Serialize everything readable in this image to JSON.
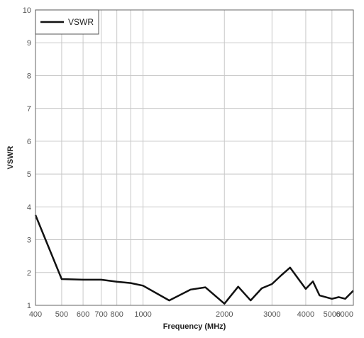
{
  "chart_data": {
    "type": "line",
    "title": "",
    "xlabel": "Frequency (MHz)",
    "ylabel": "VSWR",
    "x_scale": "log",
    "xlim": [
      400,
      6000
    ],
    "ylim": [
      1,
      10
    ],
    "x_ticks": [
      400,
      500,
      600,
      700,
      800,
      1000,
      2000,
      3000,
      4000,
      5000,
      6000
    ],
    "x_tick_labels": [
      "400",
      "500",
      "600",
      "700",
      "800",
      "1000",
      "2000",
      "3000",
      "4000",
      "5000",
      "6000"
    ],
    "x_grid": [
      400,
      500,
      600,
      700,
      800,
      900,
      1000,
      2000,
      3000,
      4000,
      5000,
      6000
    ],
    "y_ticks": [
      1,
      2,
      3,
      4,
      5,
      6,
      7,
      8,
      9,
      10
    ],
    "y_tick_labels": [
      "1",
      "2",
      "3",
      "4",
      "5",
      "6",
      "7",
      "8",
      "9",
      "10"
    ],
    "grid": true,
    "legend_position": "top-left",
    "line_color": "#111111",
    "series": [
      {
        "name": "VSWR",
        "x": [
          400,
          500,
          600,
          700,
          800,
          900,
          1000,
          1250,
          1500,
          1700,
          2000,
          2250,
          2500,
          2750,
          3000,
          3250,
          3500,
          4000,
          4250,
          4500,
          5000,
          5300,
          5600,
          6000
        ],
        "y": [
          3.75,
          1.8,
          1.78,
          1.78,
          1.72,
          1.68,
          1.6,
          1.15,
          1.48,
          1.55,
          1.05,
          1.57,
          1.15,
          1.52,
          1.65,
          1.92,
          2.15,
          1.5,
          1.73,
          1.3,
          1.2,
          1.25,
          1.2,
          1.45
        ]
      }
    ]
  }
}
